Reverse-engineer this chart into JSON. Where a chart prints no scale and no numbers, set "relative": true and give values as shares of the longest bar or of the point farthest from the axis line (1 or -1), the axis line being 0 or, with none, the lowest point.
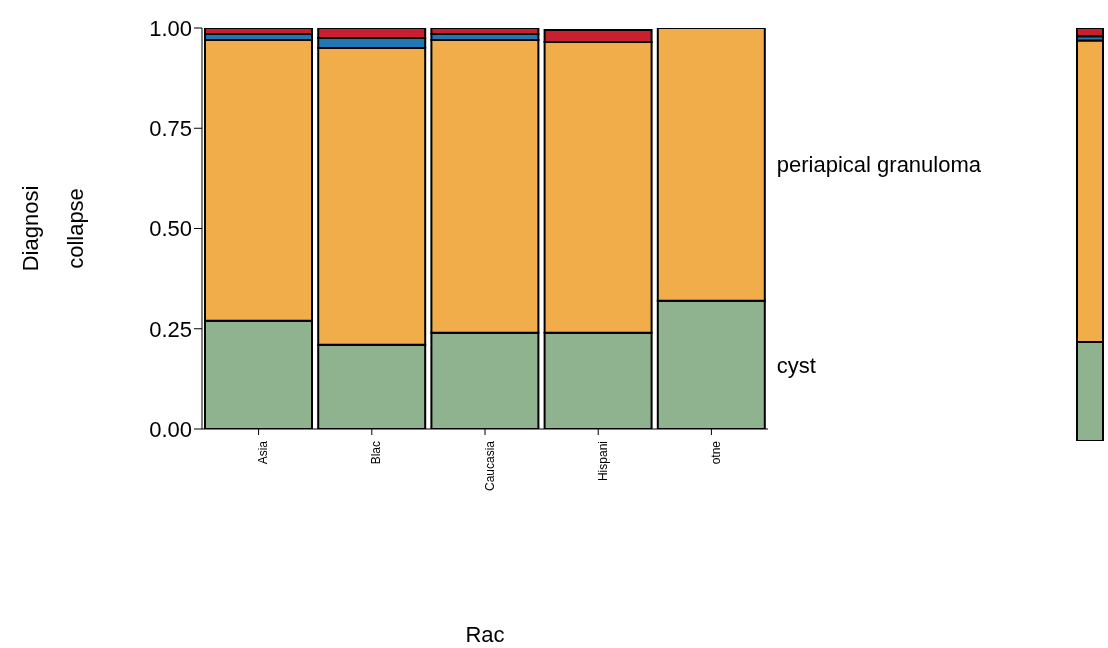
{
  "chart_data": [
    {
      "type": "bar",
      "stacked": true,
      "xlabel": "Rac",
      "ylabel": "Diagnosi\ncollapse",
      "categories": [
        "Asia",
        "Blac",
        "Caucasia",
        "Hispani",
        "otne"
      ],
      "ylim": [
        0,
        1
      ],
      "yticks": [
        {
          "value": 0,
          "label": "0.00"
        },
        {
          "value": 0.25,
          "label": "0.25"
        },
        {
          "value": 0.5,
          "label": "0.50"
        },
        {
          "value": 0.75,
          "label": "0.75"
        },
        {
          "value": 1,
          "label": "1.00"
        }
      ],
      "series": [
        {
          "name": "cyst",
          "color": "#8fb38e",
          "values": [
            0.27,
            0.21,
            0.24,
            0.24,
            0.32
          ]
        },
        {
          "name": "periapical granuloma",
          "color": "#f1ad4a",
          "values": [
            0.7,
            0.74,
            0.73,
            0.725,
            0.68
          ]
        },
        {
          "color": "#1f78b4",
          "values": [
            0.015,
            0.025,
            0.015,
            null,
            0
          ]
        },
        {
          "color": "#c8202f",
          "values": [
            0.015,
            0.025,
            0.015,
            0.03,
            0
          ]
        }
      ]
    },
    {
      "type": "bar",
      "stacked": true,
      "relative": true,
      "categories": [
        null
      ],
      "tick_labels": false,
      "series": [
        {
          "color": "#8fb38e",
          "values": [
            0.24
          ]
        },
        {
          "color": "#f1ad4a",
          "values": [
            0.73
          ]
        },
        {
          "color": "#1f78b4",
          "values": [
            0.01
          ]
        },
        {
          "color": "#c8202f",
          "values": [
            0.02
          ]
        }
      ]
    }
  ]
}
